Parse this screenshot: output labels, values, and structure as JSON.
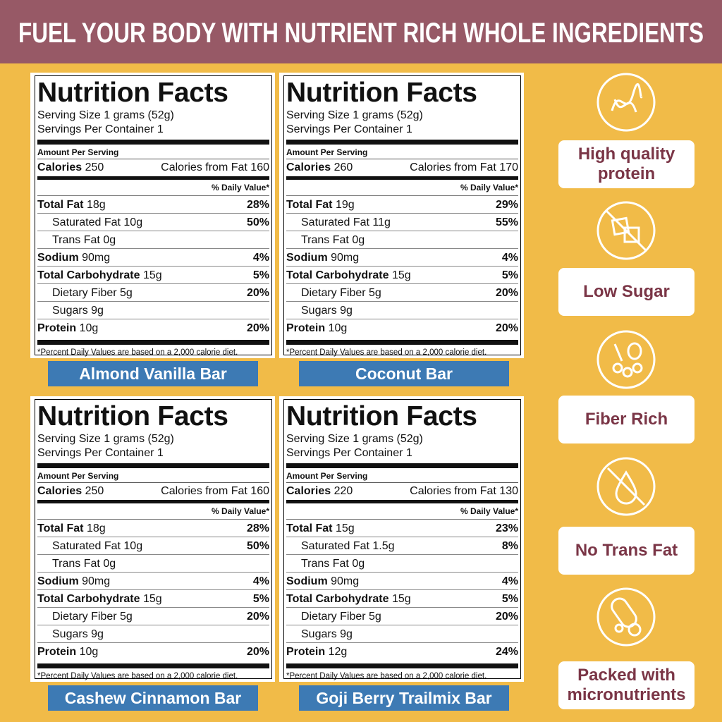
{
  "header": {
    "title": "FUEL YOUR BODY WITH NUTRIENT RICH WHOLE INGREDIENTS"
  },
  "panels": [
    {
      "name": "Almond Vanilla Bar",
      "label": {
        "title": "Nutrition Facts",
        "serving_size": "Serving Size 1 grams (52g)",
        "servings": "Servings Per Container 1",
        "amount_per_serving": "Amount Per Serving",
        "calories_label": "Calories",
        "calories": "250",
        "fat_calories_label": "Calories from Fat",
        "fat_calories": "160",
        "dv_header": "% Daily Value*",
        "rows": [
          {
            "label": "Total Fat",
            "amount": "18g",
            "dv": "28%"
          },
          {
            "label": "Saturated Fat",
            "amount": "10g",
            "dv": "50%",
            "sub": true
          },
          {
            "label": "Trans Fat",
            "amount": "0g",
            "sub": true
          },
          {
            "label": "Sodium",
            "amount": "90mg",
            "dv": "4%"
          },
          {
            "label": "Total Carbohydrate",
            "amount": "15g",
            "dv": "5%"
          },
          {
            "label": "Dietary Fiber",
            "amount": "5g",
            "dv": "20%",
            "sub": true
          },
          {
            "label": "Sugars",
            "amount": "9g",
            "sub": true
          },
          {
            "label": "Protein",
            "amount": "10g",
            "dv": "20%"
          }
        ],
        "footnote": "*Percent Daily Values are based on a 2,000 calorie diet."
      }
    },
    {
      "name": "Coconut Bar",
      "label": {
        "title": "Nutrition Facts",
        "serving_size": "Serving Size 1 grams (52g)",
        "servings": "Servings Per Container 1",
        "amount_per_serving": "Amount Per Serving",
        "calories_label": "Calories",
        "calories": "260",
        "fat_calories_label": "Calories from Fat",
        "fat_calories": "170",
        "dv_header": "% Daily Value*",
        "rows": [
          {
            "label": "Total Fat",
            "amount": "19g",
            "dv": "29%"
          },
          {
            "label": "Saturated Fat",
            "amount": "11g",
            "dv": "55%",
            "sub": true
          },
          {
            "label": "Trans Fat",
            "amount": "0g",
            "sub": true
          },
          {
            "label": "Sodium",
            "amount": "90mg",
            "dv": "4%"
          },
          {
            "label": "Total Carbohydrate",
            "amount": "15g",
            "dv": "5%"
          },
          {
            "label": "Dietary Fiber",
            "amount": "5g",
            "dv": "20%",
            "sub": true
          },
          {
            "label": "Sugars",
            "amount": "9g",
            "sub": true
          },
          {
            "label": "Protein",
            "amount": "10g",
            "dv": "20%"
          }
        ],
        "footnote": "*Percent Daily Values are based on a 2,000 calorie diet."
      }
    },
    {
      "name": "Cashew Cinnamon Bar",
      "label": {
        "title": "Nutrition Facts",
        "serving_size": "Serving Size 1 grams (52g)",
        "servings": "Servings Per Container 1",
        "amount_per_serving": "Amount Per Serving",
        "calories_label": "Calories",
        "calories": "250",
        "fat_calories_label": "Calories from Fat",
        "fat_calories": "160",
        "dv_header": "% Daily Value*",
        "rows": [
          {
            "label": "Total Fat",
            "amount": "18g",
            "dv": "28%"
          },
          {
            "label": "Saturated Fat",
            "amount": "10g",
            "dv": "50%",
            "sub": true
          },
          {
            "label": "Trans Fat",
            "amount": "0g",
            "sub": true
          },
          {
            "label": "Sodium",
            "amount": "90mg",
            "dv": "4%"
          },
          {
            "label": "Total Carbohydrate",
            "amount": "15g",
            "dv": "5%"
          },
          {
            "label": "Dietary Fiber",
            "amount": "5g",
            "dv": "20%",
            "sub": true
          },
          {
            "label": "Sugars",
            "amount": "9g",
            "sub": true
          },
          {
            "label": "Protein",
            "amount": "10g",
            "dv": "20%"
          }
        ],
        "footnote": "*Percent Daily Values are based on a 2,000 calorie diet."
      }
    },
    {
      "name": "Goji Berry Trailmix Bar",
      "label": {
        "title": "Nutrition Facts",
        "serving_size": "Serving Size 1 grams (52g)",
        "servings": "Servings Per Container 1",
        "amount_per_serving": "Amount Per Serving",
        "calories_label": "Calories",
        "calories": "220",
        "fat_calories_label": "Calories from Fat",
        "fat_calories": "130",
        "dv_header": "% Daily Value*",
        "rows": [
          {
            "label": "Total Fat",
            "amount": "15g",
            "dv": "23%"
          },
          {
            "label": "Saturated Fat",
            "amount": "1.5g",
            "dv": "8%",
            "sub": true
          },
          {
            "label": "Trans Fat",
            "amount": "0g",
            "sub": true
          },
          {
            "label": "Sodium",
            "amount": "90mg",
            "dv": "4%"
          },
          {
            "label": "Total Carbohydrate",
            "amount": "15g",
            "dv": "5%"
          },
          {
            "label": "Dietary Fiber",
            "amount": "5g",
            "dv": "20%",
            "sub": true
          },
          {
            "label": "Sugars",
            "amount": "9g",
            "sub": true
          },
          {
            "label": "Protein",
            "amount": "12g",
            "dv": "24%"
          }
        ],
        "footnote": "*Percent Daily Values are based on a 2,000 calorie diet."
      }
    }
  ],
  "features": [
    {
      "label": "High quality protein"
    },
    {
      "label": "Low Sugar"
    },
    {
      "label": "Fiber Rich"
    },
    {
      "label": "No Trans Fat"
    },
    {
      "label": "Packed with micronutrients"
    }
  ]
}
